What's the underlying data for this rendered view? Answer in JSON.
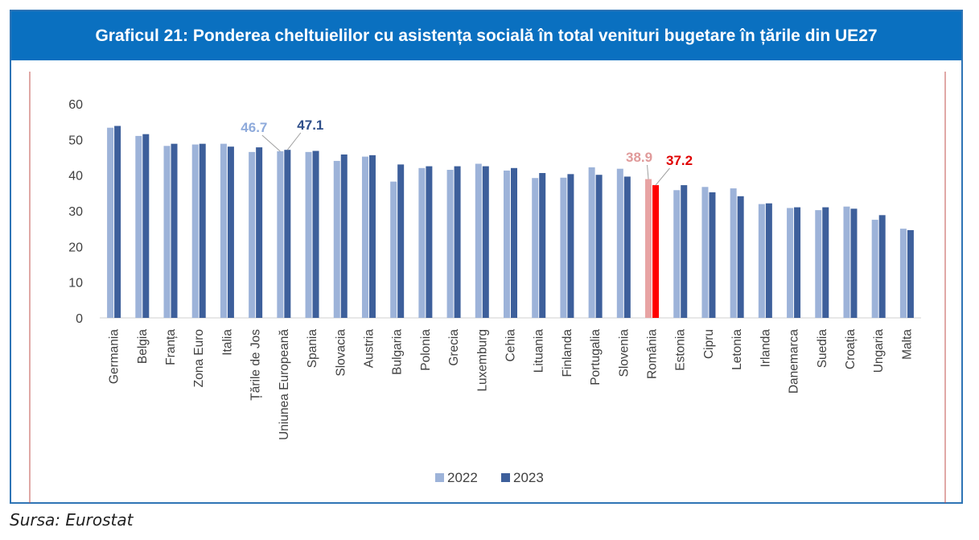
{
  "title": "Graficul 21: Ponderea cheltuielilor cu asistența socială în total venituri bugetare în țările din UE27",
  "source": "Sursa: Eurostat",
  "colors": {
    "title_bg": "#0a70c0",
    "s2022": "#9db3d9",
    "s2023": "#3d5f9b",
    "ro2022": "#e8a3a3",
    "ro2023": "#ff0000",
    "eu_label_2022": "#8eaadb",
    "eu_label_2023": "#2f4f8a",
    "ro_label_2022": "#e09a9a",
    "ro_label_2023": "#e00000"
  },
  "chart_data": {
    "type": "bar",
    "title": "Graficul 21: Ponderea cheltuielilor cu asistența socială în total venituri bugetare în țările din UE27",
    "xlabel": "",
    "ylabel": "",
    "ylim": [
      0,
      60
    ],
    "yticks": [
      "0",
      "10",
      "20",
      "30",
      "40",
      "50",
      "60"
    ],
    "grid": false,
    "legend": "bottom-center",
    "categories": [
      "Germania",
      "Belgia",
      "Franța",
      "Zona Euro",
      "Italia",
      "Țările de Jos",
      "Uniunea Europeană",
      "Spania",
      "Slovacia",
      "Austria",
      "Bulgaria",
      "Polonia",
      "Grecia",
      "Luxemburg",
      "Cehia",
      "Lituania",
      "Finlanda",
      "Portugalia",
      "Slovenia",
      "România",
      "Estonia",
      "Cipru",
      "Letonia",
      "Irlanda",
      "Danemarca",
      "Suedia",
      "Croația",
      "Ungaria",
      "Malta"
    ],
    "series": [
      {
        "name": "2022",
        "values": [
          53.3,
          51.0,
          48.2,
          48.6,
          48.8,
          46.5,
          46.7,
          46.5,
          44.0,
          45.2,
          38.2,
          42.0,
          41.5,
          43.2,
          41.3,
          39.2,
          39.3,
          42.2,
          41.8,
          38.9,
          35.8,
          36.7,
          36.3,
          31.9,
          30.8,
          30.2,
          31.2,
          27.5,
          25.0
        ]
      },
      {
        "name": "2023",
        "values": [
          53.8,
          51.5,
          48.8,
          48.8,
          48.0,
          47.8,
          47.1,
          46.8,
          45.8,
          45.6,
          43.0,
          42.5,
          42.5,
          42.5,
          42.0,
          40.6,
          40.3,
          40.1,
          39.6,
          37.2,
          37.2,
          35.2,
          34.1,
          32.1,
          31.0,
          31.0,
          30.6,
          28.8,
          24.6
        ]
      }
    ],
    "annotations": [
      {
        "category": "Uniunea Europeană",
        "series": "2022",
        "text": "46.7"
      },
      {
        "category": "Uniunea Europeană",
        "series": "2023",
        "text": "47.1"
      },
      {
        "category": "România",
        "series": "2022",
        "text": "38.9"
      },
      {
        "category": "România",
        "series": "2023",
        "text": "37.2"
      }
    ]
  }
}
